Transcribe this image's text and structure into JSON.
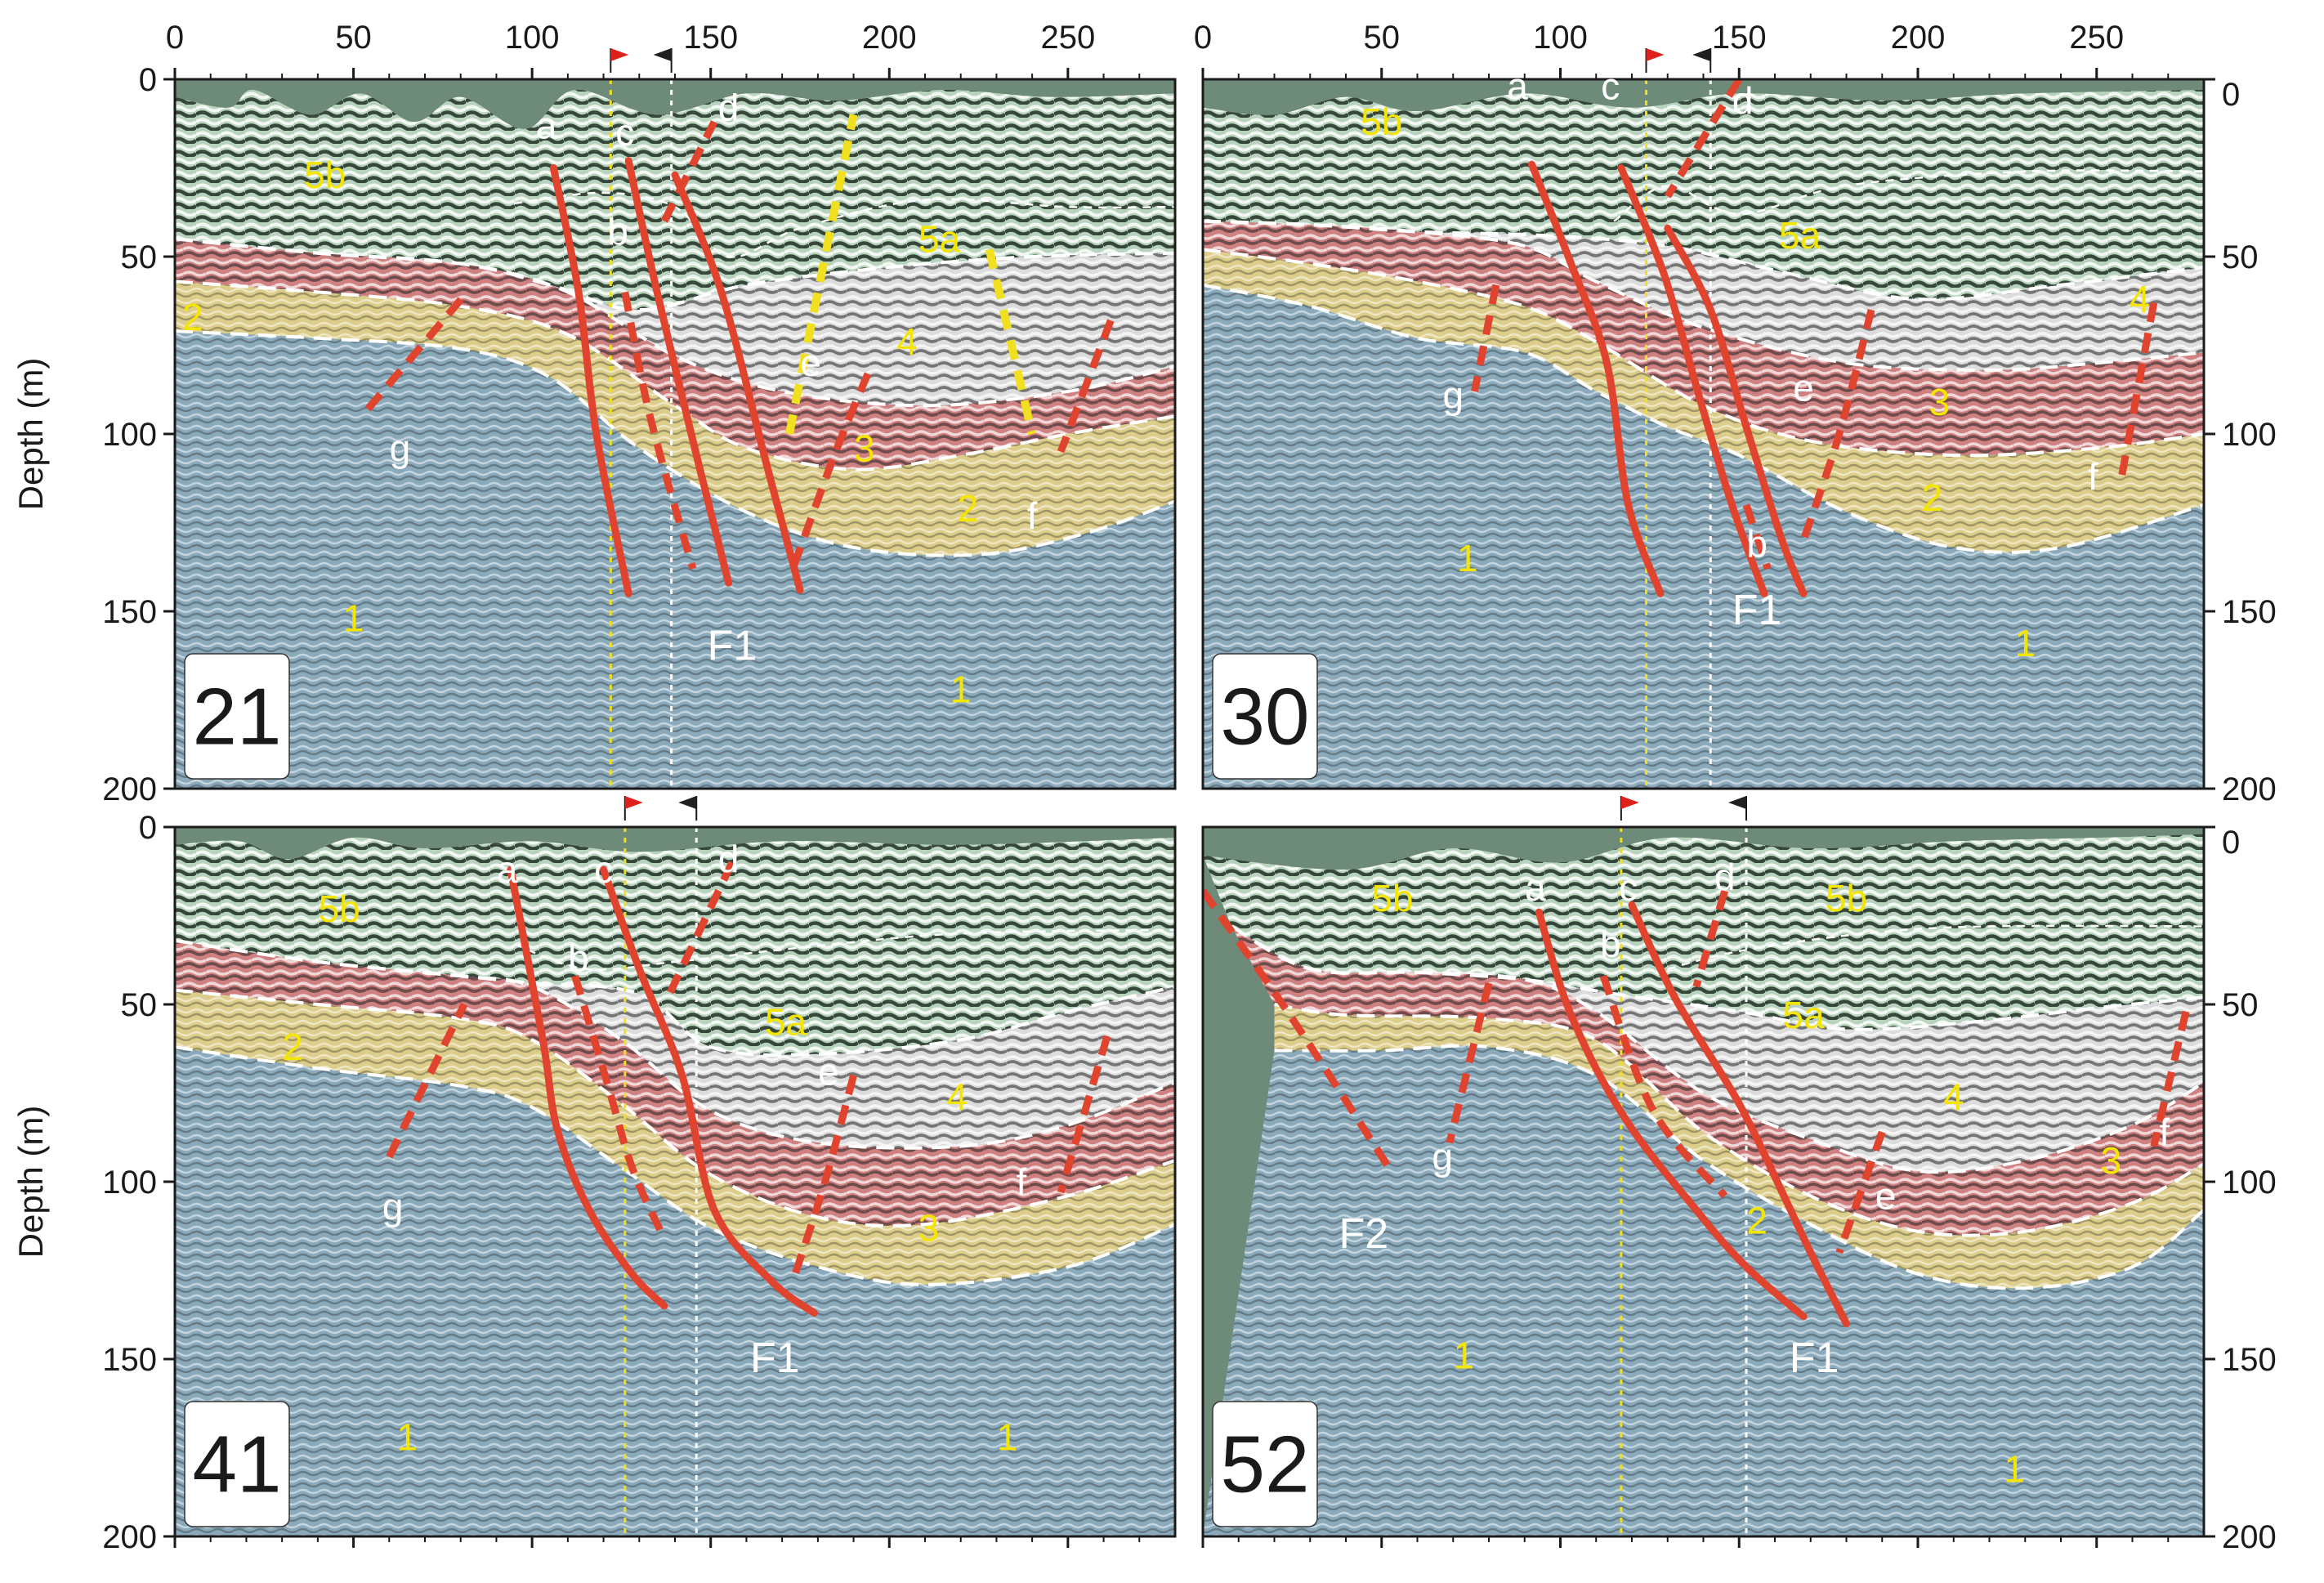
{
  "figure": {
    "depth_axis_title": "Depth (m)",
    "x_ticks": [
      "0",
      "50",
      "100",
      "150",
      "200",
      "250"
    ],
    "depth_ticks": [
      "0",
      "50",
      "100",
      "150",
      "200"
    ],
    "colors": {
      "unit_1": "#8aaabb",
      "unit_2": "#dccd8a",
      "unit_3": "#cf8080",
      "unit_4": "#dcdcdc",
      "unit_5": "#7f9d85",
      "fault": "#e0442e",
      "fault_yellow": "#f0e020",
      "unit_label": "#f5e600",
      "marker_red": "#e0201a",
      "marker_black": "#202020"
    }
  },
  "panels": [
    {
      "number": "21",
      "unit_labels": [
        {
          "text": "5b",
          "x": 42,
          "d": 27
        },
        {
          "text": "5a",
          "x": 214,
          "d": 45
        },
        {
          "text": "4",
          "x": 205,
          "d": 74
        },
        {
          "text": "3",
          "x": 193,
          "d": 104
        },
        {
          "text": "2",
          "x": 5,
          "d": 67
        },
        {
          "text": "2",
          "x": 222,
          "d": 121
        },
        {
          "text": "1",
          "x": 50,
          "d": 152
        },
        {
          "text": "1",
          "x": 220,
          "d": 172
        }
      ],
      "fault_labels": [
        {
          "text": "a",
          "x": 104,
          "d": 13
        },
        {
          "text": "c",
          "x": 126,
          "d": 15
        },
        {
          "text": "d",
          "x": 155,
          "d": 8
        },
        {
          "text": "b",
          "x": 124,
          "d": 43
        },
        {
          "text": "e",
          "x": 178,
          "d": 80
        },
        {
          "text": "g",
          "x": 63,
          "d": 104
        },
        {
          "text": "f",
          "x": 240,
          "d": 123
        },
        {
          "text": "F1",
          "x": 156,
          "d": 160
        }
      ]
    },
    {
      "number": "30",
      "unit_labels": [
        {
          "text": "5b",
          "x": 50,
          "d": 12
        },
        {
          "text": "5a",
          "x": 167,
          "d": 44
        },
        {
          "text": "4",
          "x": 262,
          "d": 62
        },
        {
          "text": "3",
          "x": 206,
          "d": 91
        },
        {
          "text": "2",
          "x": 204,
          "d": 118
        },
        {
          "text": "1",
          "x": 74,
          "d": 135
        },
        {
          "text": "1",
          "x": 230,
          "d": 159
        }
      ],
      "fault_labels": [
        {
          "text": "a",
          "x": 88,
          "d": 2
        },
        {
          "text": "c",
          "x": 114,
          "d": 2
        },
        {
          "text": "d",
          "x": 151,
          "d": 6
        },
        {
          "text": "g",
          "x": 70,
          "d": 89
        },
        {
          "text": "e",
          "x": 168,
          "d": 87
        },
        {
          "text": "f",
          "x": 249,
          "d": 112
        },
        {
          "text": "b",
          "x": 155,
          "d": 131
        },
        {
          "text": "F1",
          "x": 155,
          "d": 150
        }
      ]
    },
    {
      "number": "41",
      "unit_labels": [
        {
          "text": "5b",
          "x": 46,
          "d": 23
        },
        {
          "text": "5a",
          "x": 171,
          "d": 55
        },
        {
          "text": "4",
          "x": 219,
          "d": 76
        },
        {
          "text": "3",
          "x": 211,
          "d": 113
        },
        {
          "text": "2",
          "x": 33,
          "d": 62
        },
        {
          "text": "1",
          "x": 65,
          "d": 172
        },
        {
          "text": "1",
          "x": 233,
          "d": 172
        }
      ],
      "fault_labels": [
        {
          "text": "a",
          "x": 93,
          "d": 12
        },
        {
          "text": "c",
          "x": 120,
          "d": 12
        },
        {
          "text": "d",
          "x": 155,
          "d": 9
        },
        {
          "text": "b",
          "x": 113,
          "d": 37
        },
        {
          "text": "e",
          "x": 183,
          "d": 69
        },
        {
          "text": "g",
          "x": 61,
          "d": 107
        },
        {
          "text": "f",
          "x": 237,
          "d": 100
        },
        {
          "text": "F1",
          "x": 168,
          "d": 150
        }
      ]
    },
    {
      "number": "52",
      "unit_labels": [
        {
          "text": "5b",
          "x": 53,
          "d": 20
        },
        {
          "text": "5b",
          "x": 180,
          "d": 20
        },
        {
          "text": "5a",
          "x": 168,
          "d": 53
        },
        {
          "text": "4",
          "x": 210,
          "d": 76
        },
        {
          "text": "3",
          "x": 254,
          "d": 94
        },
        {
          "text": "2",
          "x": 155,
          "d": 111
        },
        {
          "text": "1",
          "x": 73,
          "d": 149
        },
        {
          "text": "1",
          "x": 227,
          "d": 181
        }
      ],
      "fault_labels": [
        {
          "text": "a",
          "x": 93,
          "d": 17
        },
        {
          "text": "c",
          "x": 119,
          "d": 17
        },
        {
          "text": "d",
          "x": 146,
          "d": 14
        },
        {
          "text": "b",
          "x": 114,
          "d": 33
        },
        {
          "text": "g",
          "x": 67,
          "d": 93
        },
        {
          "text": "e",
          "x": 191,
          "d": 104
        },
        {
          "text": "f",
          "x": 269,
          "d": 86
        },
        {
          "text": "F2",
          "x": 45,
          "d": 115
        },
        {
          "text": "F1",
          "x": 171,
          "d": 150
        }
      ]
    }
  ]
}
